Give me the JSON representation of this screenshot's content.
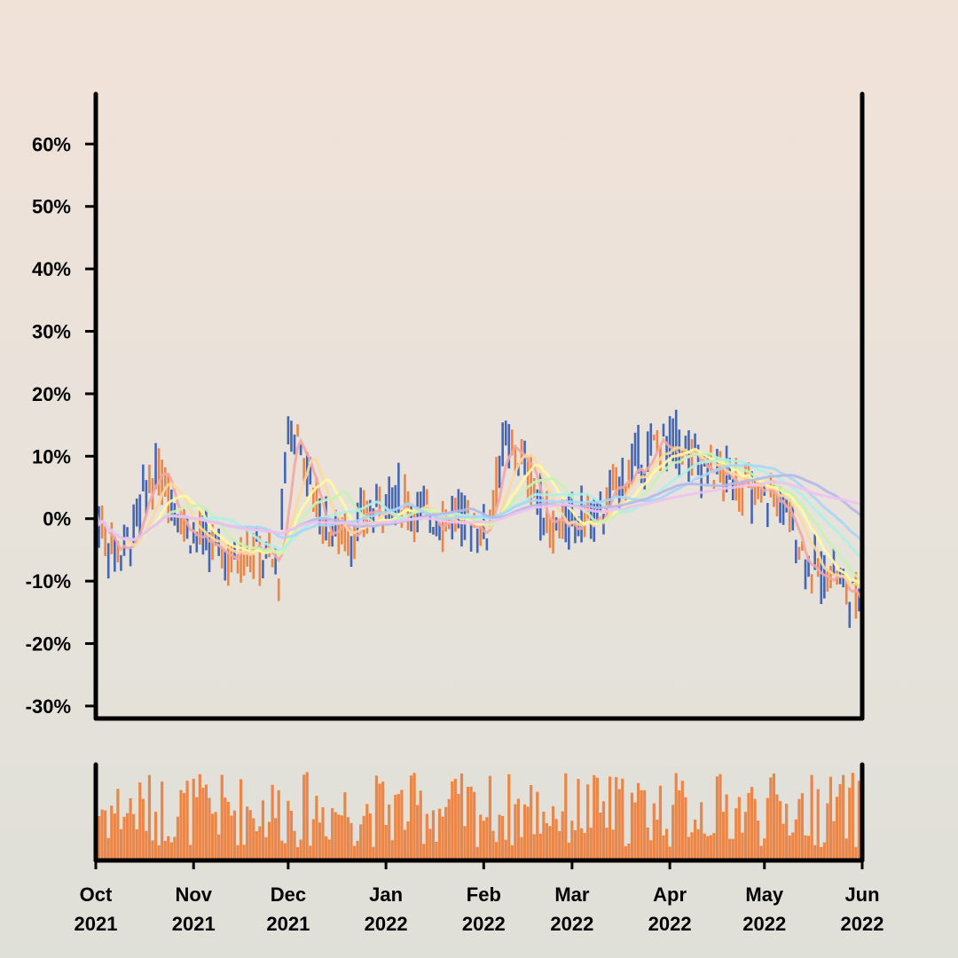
{
  "chart_data": {
    "type": "candlestick",
    "title": "",
    "xlabel": "",
    "ylabel": "",
    "y_axis": {
      "ticks": [
        "60%",
        "50%",
        "40%",
        "30%",
        "20%",
        "10%",
        "0%",
        "-10%",
        "-20%",
        "-30%"
      ],
      "ylim": [
        -32,
        68
      ],
      "unit": "%"
    },
    "x_axis": {
      "range": [
        "2021-10-01",
        "2022-06-01"
      ],
      "ticks": [
        {
          "date": "2021-10-01",
          "month": "Oct",
          "year": "2021"
        },
        {
          "date": "2021-11-01",
          "month": "Nov",
          "year": "2021"
        },
        {
          "date": "2021-12-01",
          "month": "Dec",
          "year": "2021"
        },
        {
          "date": "2022-01-01",
          "month": "Jan",
          "year": "2022"
        },
        {
          "date": "2022-02-01",
          "month": "Feb",
          "year": "2022"
        },
        {
          "date": "2022-03-01",
          "month": "Mar",
          "year": "2022"
        },
        {
          "date": "2022-04-01",
          "month": "Apr",
          "year": "2022"
        },
        {
          "date": "2022-05-01",
          "month": "May",
          "year": "2022"
        },
        {
          "date": "2022-06-01",
          "month": "Jun",
          "year": "2022"
        }
      ]
    },
    "colors": {
      "up": "#ec8548",
      "down": "#4466b8",
      "volume": "#ec8548",
      "axis": "#000000"
    },
    "close_points": [
      [
        "2021-10-01",
        1
      ],
      [
        "2021-10-05",
        -4
      ],
      [
        "2021-10-09",
        -5
      ],
      [
        "2021-10-13",
        -2
      ],
      [
        "2021-10-17",
        5
      ],
      [
        "2021-10-21",
        7
      ],
      [
        "2021-10-25",
        4
      ],
      [
        "2021-10-29",
        -1
      ],
      [
        "2021-11-03",
        -3
      ],
      [
        "2021-11-08",
        -5
      ],
      [
        "2021-11-13",
        -7
      ],
      [
        "2021-11-18",
        -5
      ],
      [
        "2021-11-23",
        -6
      ],
      [
        "2021-11-28",
        -8
      ],
      [
        "2021-12-01",
        15
      ],
      [
        "2021-12-05",
        12
      ],
      [
        "2021-12-10",
        2
      ],
      [
        "2021-12-15",
        -2
      ],
      [
        "2021-12-20",
        -3
      ],
      [
        "2021-12-25",
        0
      ],
      [
        "2021-12-30",
        2
      ],
      [
        "2022-01-04",
        4
      ],
      [
        "2022-01-09",
        2
      ],
      [
        "2022-01-14",
        1
      ],
      [
        "2022-01-19",
        0
      ],
      [
        "2022-01-24",
        1
      ],
      [
        "2022-01-29",
        -1
      ],
      [
        "2022-02-02",
        -2
      ],
      [
        "2022-02-07",
        12
      ],
      [
        "2022-02-12",
        10
      ],
      [
        "2022-02-17",
        5
      ],
      [
        "2022-02-22",
        -2
      ],
      [
        "2022-02-27",
        -1
      ],
      [
        "2022-03-04",
        1
      ],
      [
        "2022-03-09",
        0
      ],
      [
        "2022-03-14",
        4
      ],
      [
        "2022-03-19",
        8
      ],
      [
        "2022-03-24",
        10
      ],
      [
        "2022-03-29",
        12
      ],
      [
        "2022-04-03",
        13
      ],
      [
        "2022-04-08",
        10
      ],
      [
        "2022-04-13",
        8
      ],
      [
        "2022-04-18",
        7
      ],
      [
        "2022-04-23",
        6
      ],
      [
        "2022-04-28",
        3
      ],
      [
        "2022-05-03",
        4
      ],
      [
        "2022-05-08",
        1
      ],
      [
        "2022-05-13",
        -5
      ],
      [
        "2022-05-18",
        -9
      ],
      [
        "2022-05-23",
        -8
      ],
      [
        "2022-05-28",
        -13
      ],
      [
        "2022-06-01",
        -12
      ]
    ],
    "moving_averages": [
      {
        "color": "#f4a6a0"
      },
      {
        "color": "#fdd89c"
      },
      {
        "color": "#fffaa0"
      },
      {
        "color": "#c6f3b2"
      },
      {
        "color": "#aef0e4"
      },
      {
        "color": "#a9d6f6"
      },
      {
        "color": "#b6b8ea"
      },
      {
        "color": "#f0c2ee"
      }
    ]
  }
}
